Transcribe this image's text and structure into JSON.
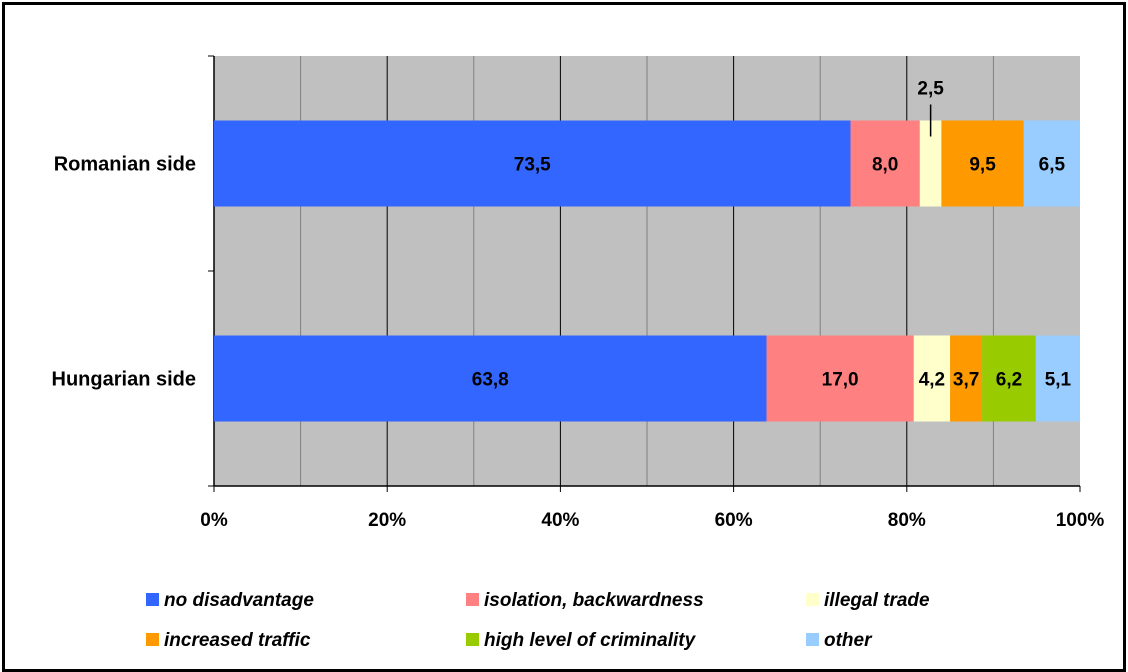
{
  "chart_data": {
    "type": "bar",
    "orientation": "horizontal",
    "stacked": "percent",
    "title": "",
    "xlabel": "",
    "ylabel": "",
    "categories": [
      "Romanian side",
      "Hungarian side"
    ],
    "xlim": [
      0,
      100
    ],
    "x_ticks": [
      "0%",
      "20%",
      "40%",
      "60%",
      "80%",
      "100%"
    ],
    "grid": true,
    "legend_position": "bottom",
    "series": [
      {
        "name": "no disadvantage",
        "color": "#3366ff",
        "values": [
          73.5,
          63.8
        ],
        "labels": [
          "73,5",
          "63,8"
        ]
      },
      {
        "name": "isolation, backwardness",
        "color": "#ff8080",
        "values": [
          8.0,
          17.0
        ],
        "labels": [
          "8,0",
          "17,0"
        ]
      },
      {
        "name": "illegal trade",
        "color": "#ffffcc",
        "values": [
          2.5,
          4.2
        ],
        "labels": [
          "2,5",
          "4,2"
        ]
      },
      {
        "name": "increased traffic",
        "color": "#ff9900",
        "values": [
          9.5,
          3.7
        ],
        "labels": [
          "9,5",
          "3,7"
        ]
      },
      {
        "name": "high level of criminality",
        "color": "#99cc00",
        "values": [
          0,
          6.2
        ],
        "labels": [
          "",
          "6,2"
        ]
      },
      {
        "name": "other",
        "color": "#99ccff",
        "values": [
          6.5,
          5.1
        ],
        "labels": [
          "6,5",
          "5,1"
        ]
      }
    ]
  }
}
